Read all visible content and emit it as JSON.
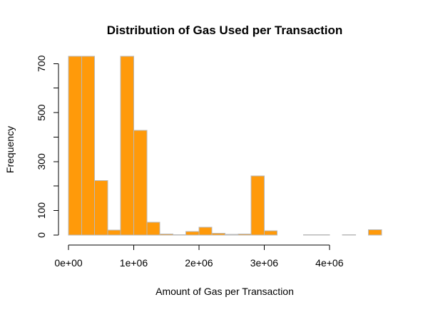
{
  "chart_data": {
    "type": "bar",
    "title": "Distribution of Gas Used per Transaction",
    "xlabel": "Amount of Gas per Transaction",
    "ylabel": "Frequency",
    "bar_color": "#FF9A0A",
    "bar_border_color": "#B8B8B8",
    "bin_width": 200000,
    "x_range": [
      0,
      4800000
    ],
    "ylim": [
      0,
      730
    ],
    "x_ticks": [
      {
        "value": 0,
        "label": "0e+00"
      },
      {
        "value": 1000000,
        "label": "1e+06"
      },
      {
        "value": 2000000,
        "label": "2e+06"
      },
      {
        "value": 3000000,
        "label": "3e+06"
      },
      {
        "value": 4000000,
        "label": "4e+06"
      }
    ],
    "y_ticks": [
      {
        "value": 0,
        "label": "0"
      },
      {
        "value": 100,
        "label": "100"
      },
      {
        "value": 200,
        "label": ""
      },
      {
        "value": 300,
        "label": "300"
      },
      {
        "value": 400,
        "label": ""
      },
      {
        "value": 500,
        "label": "500"
      },
      {
        "value": 600,
        "label": ""
      },
      {
        "value": 700,
        "label": "700"
      }
    ],
    "bins": [
      {
        "start": 0,
        "end": 200000,
        "value": 730
      },
      {
        "start": 200000,
        "end": 400000,
        "value": 730
      },
      {
        "start": 400000,
        "end": 600000,
        "value": 222
      },
      {
        "start": 600000,
        "end": 800000,
        "value": 20
      },
      {
        "start": 800000,
        "end": 1000000,
        "value": 730
      },
      {
        "start": 1000000,
        "end": 1200000,
        "value": 428
      },
      {
        "start": 1200000,
        "end": 1400000,
        "value": 52
      },
      {
        "start": 1400000,
        "end": 1600000,
        "value": 5
      },
      {
        "start": 1600000,
        "end": 1800000,
        "value": 2
      },
      {
        "start": 1800000,
        "end": 2000000,
        "value": 15
      },
      {
        "start": 2000000,
        "end": 2200000,
        "value": 32
      },
      {
        "start": 2200000,
        "end": 2400000,
        "value": 8
      },
      {
        "start": 2400000,
        "end": 2600000,
        "value": 3
      },
      {
        "start": 2600000,
        "end": 2800000,
        "value": 5
      },
      {
        "start": 2800000,
        "end": 3000000,
        "value": 242
      },
      {
        "start": 3000000,
        "end": 3200000,
        "value": 18
      },
      {
        "start": 3200000,
        "end": 3400000,
        "value": 0
      },
      {
        "start": 3400000,
        "end": 3600000,
        "value": 0
      },
      {
        "start": 3600000,
        "end": 3800000,
        "value": 2
      },
      {
        "start": 3800000,
        "end": 4000000,
        "value": 1
      },
      {
        "start": 4000000,
        "end": 4200000,
        "value": 0
      },
      {
        "start": 4200000,
        "end": 4400000,
        "value": 1
      },
      {
        "start": 4400000,
        "end": 4600000,
        "value": 0
      },
      {
        "start": 4600000,
        "end": 4800000,
        "value": 22
      }
    ]
  }
}
